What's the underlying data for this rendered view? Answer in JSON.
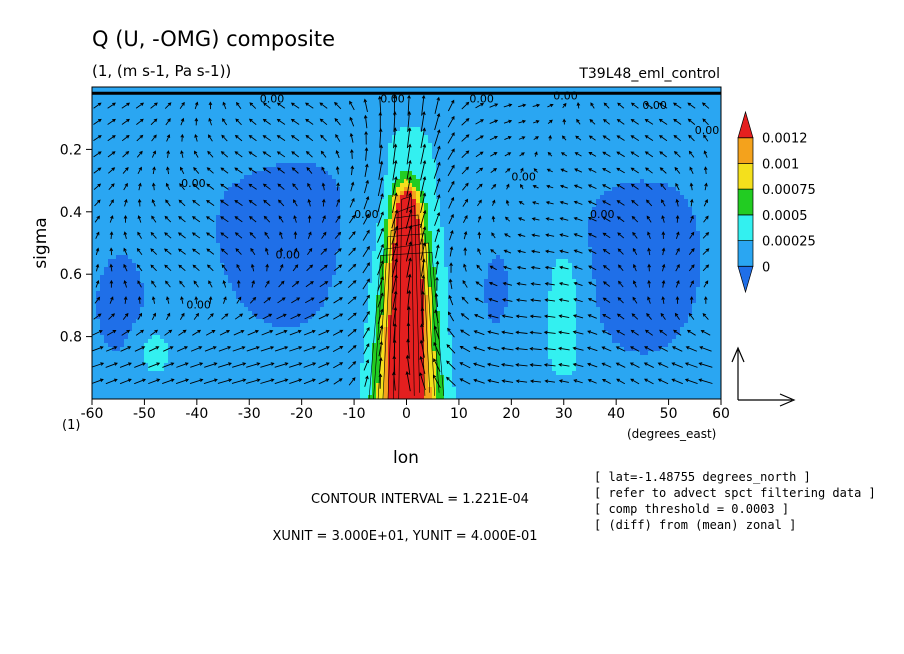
{
  "chart_data": {
    "type": "heatmap",
    "title": "Q (U, -OMG) composite",
    "subtitle": "(1, (m s-1, Pa s-1))",
    "run_label": "T39L48_eml_control",
    "xlabel": "lon",
    "x_units": "(degrees_east)",
    "ylabel": "sigma",
    "y_axis_note": "(1)",
    "xlim": [
      -60,
      60
    ],
    "ylim": [
      1.0,
      0.0
    ],
    "x_ticks": [
      -60,
      -50,
      -40,
      -30,
      -20,
      -10,
      0,
      10,
      20,
      30,
      40,
      50,
      60
    ],
    "y_ticks": [
      0.2,
      0.4,
      0.6,
      0.8
    ],
    "colorbar": {
      "levels": [
        0,
        0.00025,
        0.0005,
        0.00075,
        0.001,
        0.0012
      ],
      "labels": [
        "0",
        "0.00025",
        "0.0005",
        "0.00075",
        "0.001",
        "0.0012"
      ],
      "colors": [
        "#1f6fe8",
        "#2aa6f2",
        "#33f0f0",
        "#22cc22",
        "#f4e01c",
        "#f4a21c",
        "#e41f1f"
      ]
    },
    "contour_labels": [
      "0.00"
    ],
    "field_features": [
      {
        "lon": 0,
        "sigma_top": 0.4,
        "sigma_bottom": 1.0,
        "peak": 0.0015
      },
      {
        "lon": 30,
        "sigma_top": 0.58,
        "sigma_bottom": 0.9,
        "peak": 0.0004
      },
      {
        "lon": -48,
        "sigma_top": 0.8,
        "sigma_bottom": 0.9,
        "peak": 0.0003
      }
    ],
    "footer": {
      "contour_interval": "CONTOUR INTERVAL = 1.221E-04",
      "units": "XUNIT = 3.000E+01, YUNIT = 4.000E-01"
    },
    "info_lines": [
      "[ lat=-1.48755 degrees_north ]",
      "[ refer to advect spct filtering data ]",
      "[ comp threshold = 0.0003 ]",
      "[ (diff) from (mean) zonal ]"
    ]
  }
}
